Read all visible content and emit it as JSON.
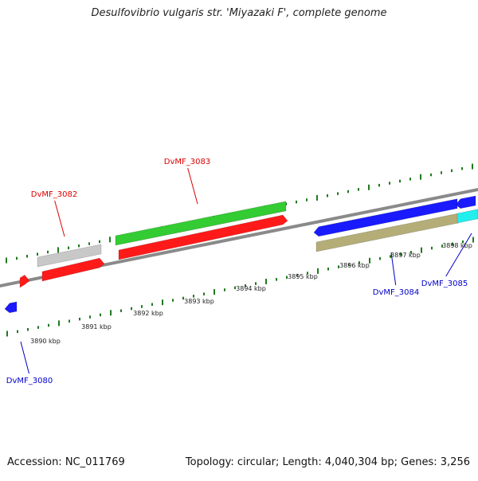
{
  "title": "Desulfovibrio vulgaris str. 'Miyazaki F', complete genome",
  "footer": {
    "accession": "Accession: NC_011769",
    "summary": "Topology: circular; Length: 4,040,304 bp; Genes: 3,256"
  },
  "colors": {
    "backbone": "#8a8a8a",
    "tick": "#1f7a1f",
    "red": "#ff1a1a",
    "green": "#33cc33",
    "gray": "#c8c8c8",
    "blue": "#1a1aff",
    "olive": "#b5ad78",
    "cyan": "#22eeee",
    "label_forward": "#dd0000",
    "label_reverse": "#0000cc"
  },
  "scale_labels": [
    "3890 kbp",
    "3891 kbp",
    "3892 kbp",
    "3893 kbp",
    "3894 kbp",
    "3895 kbp",
    "3896 kbp",
    "3897 kbp",
    "3898 kbp"
  ],
  "gene_labels": [
    {
      "name": "DvMF_3082",
      "strand": "forward"
    },
    {
      "name": "DvMF_3083",
      "strand": "forward"
    },
    {
      "name": "DvMF_3084",
      "strand": "reverse"
    },
    {
      "name": "DvMF_3085",
      "strand": "reverse"
    },
    {
      "name": "DvMF_3080",
      "strand": "reverse"
    }
  ]
}
